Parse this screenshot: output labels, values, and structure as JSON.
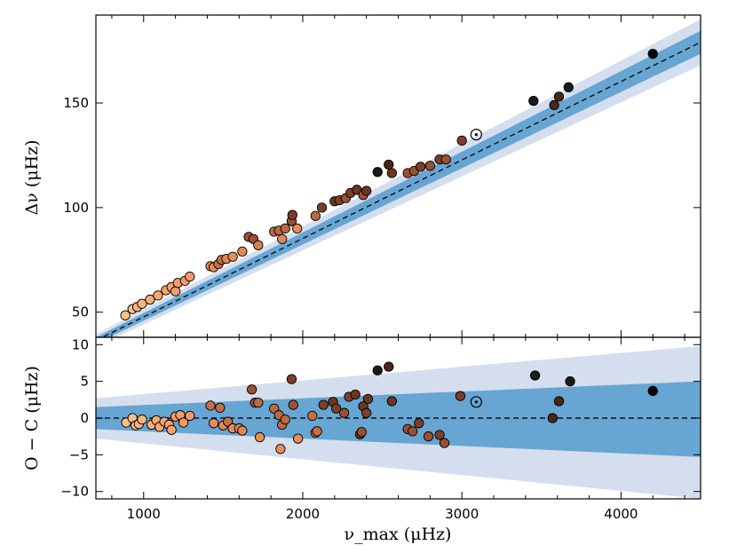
{
  "chart_data": [
    {
      "type": "scatter",
      "panel": "top",
      "ylabel": "Δν (μHz)",
      "xlim": [
        700,
        4500
      ],
      "ylim": [
        38,
        192
      ],
      "yticks": [
        50,
        100,
        150
      ],
      "ytick_labels": [
        "50",
        "100",
        "150"
      ],
      "fit_line": {
        "x": [
          700,
          4500
        ],
        "y": [
          36.5,
          179
        ]
      },
      "bands": [
        {
          "name": "inner band",
          "x": [
            700,
            4500
          ],
          "y_low": [
            35.0,
            173.5
          ],
          "y_high": [
            38.0,
            184.5
          ],
          "color": "#5b9fce"
        },
        {
          "name": "outer band",
          "x": [
            700,
            4500
          ],
          "y_low": [
            33.5,
            168.0
          ],
          "y_high": [
            39.5,
            190.0
          ],
          "color": "#c5d3e8"
        }
      ],
      "sun": {
        "x": 3090,
        "y": 134.9
      },
      "points": [
        {
          "x": 885,
          "y": 48.5,
          "c": "#fdbf86"
        },
        {
          "x": 930,
          "y": 51.5,
          "c": "#fdbf86"
        },
        {
          "x": 960,
          "y": 52.5,
          "c": "#fbb57f"
        },
        {
          "x": 990,
          "y": 54.0,
          "c": "#fbb57f"
        },
        {
          "x": 1040,
          "y": 56.0,
          "c": "#f9ae7a"
        },
        {
          "x": 1090,
          "y": 58.0,
          "c": "#f7a873"
        },
        {
          "x": 1140,
          "y": 60.5,
          "c": "#f5a26e"
        },
        {
          "x": 1175,
          "y": 62.0,
          "c": "#f5a26e"
        },
        {
          "x": 1200,
          "y": 60.0,
          "c": "#f39c69"
        },
        {
          "x": 1215,
          "y": 64.0,
          "c": "#f39c69"
        },
        {
          "x": 1260,
          "y": 65.0,
          "c": "#f29866"
        },
        {
          "x": 1290,
          "y": 67.0,
          "c": "#f29866"
        },
        {
          "x": 1420,
          "y": 72.0,
          "c": "#e88c5b"
        },
        {
          "x": 1440,
          "y": 71.5,
          "c": "#e3895a"
        },
        {
          "x": 1470,
          "y": 73.0,
          "c": "#c66f44"
        },
        {
          "x": 1490,
          "y": 75.0,
          "c": "#c66f44"
        },
        {
          "x": 1520,
          "y": 75.5,
          "c": "#e08756"
        },
        {
          "x": 1560,
          "y": 76.5,
          "c": "#e88c5b"
        },
        {
          "x": 1620,
          "y": 79.0,
          "c": "#e08756"
        },
        {
          "x": 1660,
          "y": 86.0,
          "c": "#9a5032"
        },
        {
          "x": 1690,
          "y": 85.0,
          "c": "#9a5032"
        },
        {
          "x": 1720,
          "y": 82.0,
          "c": "#d87f52"
        },
        {
          "x": 1820,
          "y": 88.5,
          "c": "#b86a44"
        },
        {
          "x": 1850,
          "y": 89.0,
          "c": "#b86a44"
        },
        {
          "x": 1870,
          "y": 85.0,
          "c": "#e08756"
        },
        {
          "x": 1890,
          "y": 90.0,
          "c": "#b86a44"
        },
        {
          "x": 1930,
          "y": 93.5,
          "c": "#9a5032"
        },
        {
          "x": 1935,
          "y": 96.5,
          "c": "#7c3f26"
        },
        {
          "x": 1965,
          "y": 90.0,
          "c": "#e88c5b"
        },
        {
          "x": 2080,
          "y": 96.0,
          "c": "#b86a44"
        },
        {
          "x": 2120,
          "y": 100.0,
          "c": "#7c3f26"
        },
        {
          "x": 2200,
          "y": 103.0,
          "c": "#6b3622"
        },
        {
          "x": 2230,
          "y": 103.5,
          "c": "#7c3f26"
        },
        {
          "x": 2270,
          "y": 104.5,
          "c": "#9a5032"
        },
        {
          "x": 2300,
          "y": 107.0,
          "c": "#7c3f26"
        },
        {
          "x": 2340,
          "y": 108.5,
          "c": "#6b3622"
        },
        {
          "x": 2380,
          "y": 106.0,
          "c": "#9a5032"
        },
        {
          "x": 2400,
          "y": 108.0,
          "c": "#6b3622"
        },
        {
          "x": 2470,
          "y": 117.0,
          "c": "#1a1a1a"
        },
        {
          "x": 2540,
          "y": 120.5,
          "c": "#4a2616"
        },
        {
          "x": 2560,
          "y": 116.5,
          "c": "#6b3622"
        },
        {
          "x": 2660,
          "y": 116.5,
          "c": "#9a5032"
        },
        {
          "x": 2700,
          "y": 117.5,
          "c": "#9a5032"
        },
        {
          "x": 2740,
          "y": 119.5,
          "c": "#7c3f26"
        },
        {
          "x": 2800,
          "y": 120.0,
          "c": "#9a5032"
        },
        {
          "x": 2860,
          "y": 123.0,
          "c": "#7c3f26"
        },
        {
          "x": 2900,
          "y": 123.0,
          "c": "#9a5032"
        },
        {
          "x": 3000,
          "y": 132.0,
          "c": "#7c3f26"
        },
        {
          "x": 3450,
          "y": 151.0,
          "c": "#1a1a1a"
        },
        {
          "x": 3580,
          "y": 149.0,
          "c": "#4a2616"
        },
        {
          "x": 3610,
          "y": 153.0,
          "c": "#4a2616"
        },
        {
          "x": 3670,
          "y": 157.5,
          "c": "#1a1a1a"
        },
        {
          "x": 4200,
          "y": 173.5,
          "c": "#000000"
        }
      ]
    },
    {
      "type": "scatter",
      "panel": "bottom",
      "xlabel": "ν_max (μHz)",
      "ylabel": "O − C (μHz)",
      "xlim": [
        700,
        4500
      ],
      "ylim": [
        -11,
        11
      ],
      "xticks": [
        1000,
        2000,
        3000,
        4000
      ],
      "xtick_labels": [
        "1000",
        "2000",
        "3000",
        "4000"
      ],
      "yticks": [
        -10,
        -5,
        0,
        5,
        10
      ],
      "ytick_labels": [
        "−10",
        "−5",
        "0",
        "5",
        "10"
      ],
      "fit_line": {
        "x": [
          700,
          4500
        ],
        "y": [
          0,
          0
        ]
      },
      "bands": [
        {
          "name": "inner band",
          "x": [
            700,
            4500
          ],
          "y_low": [
            -1.5,
            -5.3
          ],
          "y_high": [
            1.5,
            5.0
          ],
          "color": "#5b9fce"
        },
        {
          "name": "outer band",
          "x": [
            700,
            4500
          ],
          "y_low": [
            -2.8,
            -11.0
          ],
          "y_high": [
            2.7,
            9.8
          ],
          "color": "#c5d3e8"
        }
      ],
      "sun": {
        "x": 3090,
        "y": 2.2
      },
      "points": [
        {
          "x": 890,
          "y": -0.6,
          "c": "#fdbf86"
        },
        {
          "x": 930,
          "y": 0.0,
          "c": "#fdbf86"
        },
        {
          "x": 950,
          "y": -1.0,
          "c": "#fbb57f"
        },
        {
          "x": 970,
          "y": -0.8,
          "c": "#fbb57f"
        },
        {
          "x": 990,
          "y": -0.2,
          "c": "#fbb57f"
        },
        {
          "x": 1050,
          "y": -0.9,
          "c": "#f9ae7a"
        },
        {
          "x": 1080,
          "y": -0.3,
          "c": "#f7a873"
        },
        {
          "x": 1100,
          "y": -1.2,
          "c": "#f7a873"
        },
        {
          "x": 1130,
          "y": -0.5,
          "c": "#f5a26e"
        },
        {
          "x": 1160,
          "y": -0.9,
          "c": "#f5a26e"
        },
        {
          "x": 1175,
          "y": -1.6,
          "c": "#f5a26e"
        },
        {
          "x": 1200,
          "y": 0.2,
          "c": "#f39c69"
        },
        {
          "x": 1230,
          "y": 0.4,
          "c": "#f39c69"
        },
        {
          "x": 1250,
          "y": -0.6,
          "c": "#f29866"
        },
        {
          "x": 1290,
          "y": 0.3,
          "c": "#f29866"
        },
        {
          "x": 1420,
          "y": 1.7,
          "c": "#c66f44"
        },
        {
          "x": 1440,
          "y": -0.7,
          "c": "#e88c5b"
        },
        {
          "x": 1480,
          "y": 1.4,
          "c": "#c66f44"
        },
        {
          "x": 1500,
          "y": -1.0,
          "c": "#e08756"
        },
        {
          "x": 1530,
          "y": -0.5,
          "c": "#c66f44"
        },
        {
          "x": 1560,
          "y": -1.4,
          "c": "#e88c5b"
        },
        {
          "x": 1600,
          "y": -1.4,
          "c": "#e08756"
        },
        {
          "x": 1620,
          "y": -1.7,
          "c": "#e08756"
        },
        {
          "x": 1680,
          "y": 3.9,
          "c": "#9a5032"
        },
        {
          "x": 1700,
          "y": 2.1,
          "c": "#9a5032"
        },
        {
          "x": 1720,
          "y": 2.1,
          "c": "#b86a44"
        },
        {
          "x": 1730,
          "y": -2.6,
          "c": "#e88c5b"
        },
        {
          "x": 1820,
          "y": 1.3,
          "c": "#b86a44"
        },
        {
          "x": 1850,
          "y": 0.4,
          "c": "#b86a44"
        },
        {
          "x": 1860,
          "y": -4.2,
          "c": "#e88c5b"
        },
        {
          "x": 1870,
          "y": -0.9,
          "c": "#b86a44"
        },
        {
          "x": 1890,
          "y": -0.2,
          "c": "#b86a44"
        },
        {
          "x": 1930,
          "y": 5.3,
          "c": "#7c3f26"
        },
        {
          "x": 1940,
          "y": 1.8,
          "c": "#9a5032"
        },
        {
          "x": 1970,
          "y": -2.8,
          "c": "#e88c5b"
        },
        {
          "x": 2060,
          "y": 0.3,
          "c": "#c66f44"
        },
        {
          "x": 2080,
          "y": -2.0,
          "c": "#b86a44"
        },
        {
          "x": 2090,
          "y": -1.8,
          "c": "#c66f44"
        },
        {
          "x": 2130,
          "y": 1.8,
          "c": "#7c3f26"
        },
        {
          "x": 2190,
          "y": 2.2,
          "c": "#6b3622"
        },
        {
          "x": 2210,
          "y": 1.3,
          "c": "#7c3f26"
        },
        {
          "x": 2260,
          "y": 0.7,
          "c": "#9a5032"
        },
        {
          "x": 2290,
          "y": 2.9,
          "c": "#7c3f26"
        },
        {
          "x": 2330,
          "y": 3.2,
          "c": "#6b3622"
        },
        {
          "x": 2360,
          "y": -2.2,
          "c": "#6b3622"
        },
        {
          "x": 2370,
          "y": -1.9,
          "c": "#9a5032"
        },
        {
          "x": 2380,
          "y": 1.6,
          "c": "#6b3622"
        },
        {
          "x": 2400,
          "y": 0.7,
          "c": "#7c3f26"
        },
        {
          "x": 2410,
          "y": 2.6,
          "c": "#6b3622"
        },
        {
          "x": 2470,
          "y": 6.5,
          "c": "#1a1a1a"
        },
        {
          "x": 2540,
          "y": 7.0,
          "c": "#4a2616"
        },
        {
          "x": 2560,
          "y": 2.3,
          "c": "#6b3622"
        },
        {
          "x": 2660,
          "y": -1.5,
          "c": "#9a5032"
        },
        {
          "x": 2690,
          "y": -1.8,
          "c": "#9a5032"
        },
        {
          "x": 2730,
          "y": -0.7,
          "c": "#7c3f26"
        },
        {
          "x": 2790,
          "y": -2.5,
          "c": "#9a5032"
        },
        {
          "x": 2860,
          "y": -2.3,
          "c": "#7c3f26"
        },
        {
          "x": 2890,
          "y": -3.4,
          "c": "#9a5032"
        },
        {
          "x": 2990,
          "y": 3.0,
          "c": "#7c3f26"
        },
        {
          "x": 3460,
          "y": 5.8,
          "c": "#1a1a1a"
        },
        {
          "x": 3570,
          "y": 0.0,
          "c": "#4a2616"
        },
        {
          "x": 3610,
          "y": 2.3,
          "c": "#4a2616"
        },
        {
          "x": 3680,
          "y": 5.0,
          "c": "#1a1a1a"
        },
        {
          "x": 4200,
          "y": 3.7,
          "c": "#000000"
        }
      ]
    }
  ]
}
